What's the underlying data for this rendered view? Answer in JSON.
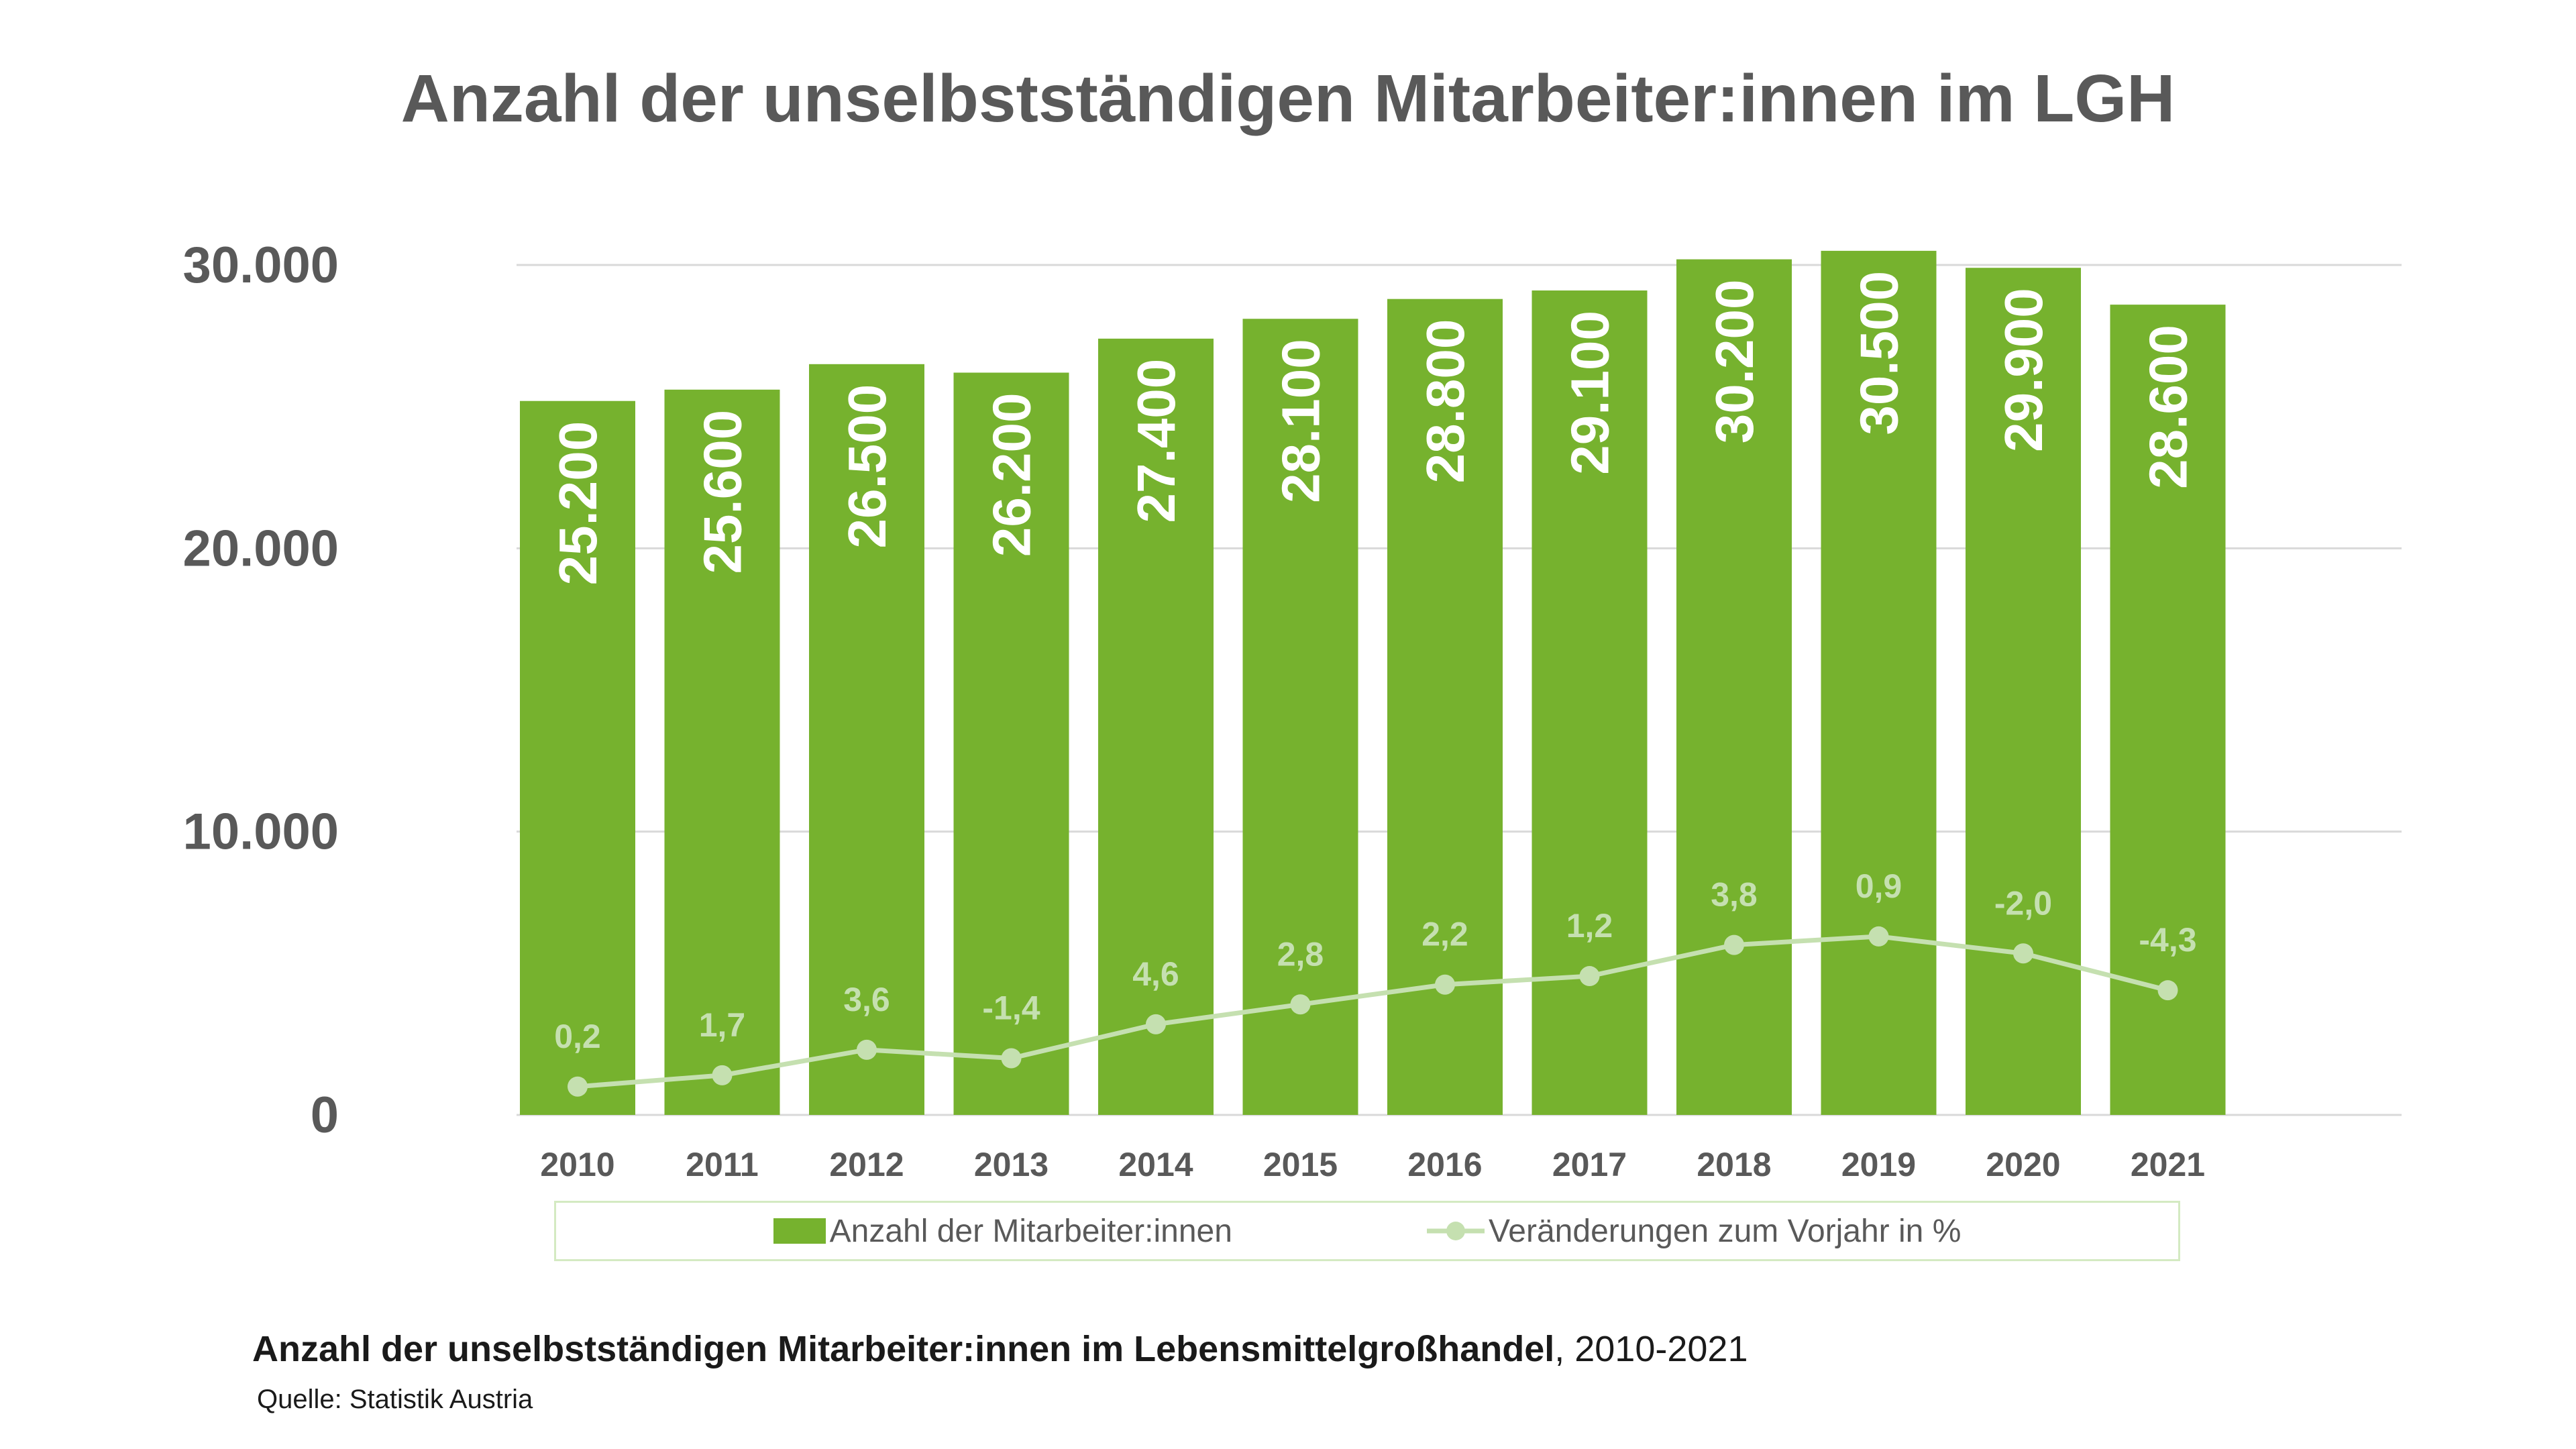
{
  "title": "Anzahl der unselbstständigen Mitarbeiter:innen im LGH",
  "legend": {
    "bars": "Anzahl der Mitarbeiter:innen",
    "line": "Veränderungen zum Vorjahr in %"
  },
  "caption": {
    "bold": "Anzahl der unselbstständigen Mitarbeiter:innen im Lebensmittelgroßhandel",
    "rest": ", 2010-2021"
  },
  "source": "Quelle: Statistik Austria",
  "colors": {
    "bar": "#76b22e",
    "line": "#c5e0b0",
    "axis_text": "#595959",
    "bar_label": "#ffffff",
    "grid": "#d9d9d9"
  },
  "chart_data": {
    "type": "bar",
    "categories": [
      "2010",
      "2011",
      "2012",
      "2013",
      "2014",
      "2015",
      "2016",
      "2017",
      "2018",
      "2019",
      "2020",
      "2021"
    ],
    "series": [
      {
        "name": "Anzahl der Mitarbeiter:innen",
        "type": "bar",
        "values": [
          25200,
          25600,
          26500,
          26200,
          27400,
          28100,
          28800,
          29100,
          30200,
          30500,
          29900,
          28600
        ],
        "labels": [
          "25.200",
          "25.600",
          "26.500",
          "26.200",
          "27.400",
          "28.100",
          "28.800",
          "29.100",
          "30.200",
          "30.500",
          "29.900",
          "28.600"
        ]
      },
      {
        "name": "Veränderungen zum Vorjahr in %",
        "type": "line",
        "values": [
          0.2,
          1.7,
          3.6,
          -1.4,
          4.6,
          2.8,
          2.2,
          1.2,
          3.8,
          0.9,
          -2.0,
          -4.3
        ],
        "labels": [
          "0,2",
          "1,7",
          "3,6",
          "-1,4",
          "4,6",
          "2,8",
          "2,2",
          "1,2",
          "3,8",
          "0,9",
          "-2,0",
          "-4,3"
        ],
        "plotted_y": [
          1000,
          1400,
          2300,
          2000,
          3200,
          3900,
          4600,
          4900,
          6000,
          6300,
          5700,
          4400
        ]
      }
    ],
    "yticks": [
      0,
      10000,
      20000,
      30000
    ],
    "ytick_labels": [
      "0",
      "10.000",
      "20.000",
      "30.000"
    ],
    "ylim": [
      0,
      30000
    ],
    "grid": true,
    "legend_position": "bottom"
  }
}
